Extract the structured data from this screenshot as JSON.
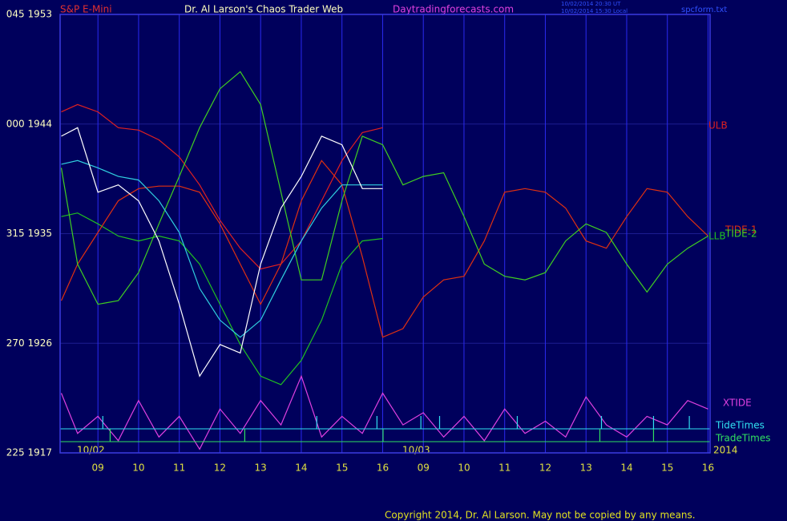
{
  "chart_data": {
    "type": "line",
    "instrument": "S&P E-Mini",
    "title": "Dr. Al Larson's Chaos Trader Web",
    "website": "Daytradingforecasts.com",
    "timestamps": [
      "10/02/2014 20:30 UT",
      "10/02/2014 15:30 Local"
    ],
    "file": "spcform.txt",
    "copyright": "Copyright 2014, Dr. Al Larson. May not be copied by any means.",
    "date_labels": [
      "10/02",
      "10/03",
      "2014"
    ],
    "grid": true,
    "xlim": [
      0.07,
      16.05
    ],
    "ylim": [
      1917,
      1953
    ],
    "xticks": [
      {
        "value": 1,
        "label": "09"
      },
      {
        "value": 2,
        "label": "10"
      },
      {
        "value": 3,
        "label": "11"
      },
      {
        "value": 4,
        "label": "12"
      },
      {
        "value": 5,
        "label": "13"
      },
      {
        "value": 6,
        "label": "14"
      },
      {
        "value": 7,
        "label": "15"
      },
      {
        "value": 8,
        "label": "16"
      },
      {
        "value": 9,
        "label": "09"
      },
      {
        "value": 10,
        "label": "10"
      },
      {
        "value": 11,
        "label": "11"
      },
      {
        "value": 12,
        "label": "12"
      },
      {
        "value": 13,
        "label": "13"
      },
      {
        "value": 14,
        "label": "14"
      },
      {
        "value": 15,
        "label": "15"
      },
      {
        "value": 16,
        "label": "16"
      }
    ],
    "yticks": [
      {
        "value": 1953,
        "label": "045 1953"
      },
      {
        "value": 1944,
        "label": "000 1944"
      },
      {
        "value": 1935,
        "label": "315 1935"
      },
      {
        "value": 1926,
        "label": "270 1926"
      },
      {
        "value": 1917,
        "label": "225 1917"
      }
    ],
    "x": [
      0.1,
      0.5,
      1,
      1.5,
      2,
      2.5,
      3,
      3.5,
      4,
      4.5,
      5,
      5.5,
      6,
      6.5,
      7,
      7.5,
      8,
      8.5,
      9,
      9.5,
      10,
      10.5,
      11,
      11.5,
      12,
      12.5,
      13,
      13.5,
      14,
      14.5,
      15,
      15.5,
      16
    ],
    "series": [
      {
        "name": "ULB",
        "color": "#e02020",
        "values": [
          1945.0,
          1945.6,
          1945.0,
          1943.7,
          1943.5,
          1942.7,
          1941.3,
          1939.0,
          1936.1,
          1933.8,
          1932.1,
          1932.5,
          1934.4,
          1937.7,
          1941.0,
          1943.3,
          1943.7,
          null,
          null,
          null,
          null,
          null,
          null,
          null,
          null,
          null,
          null,
          null,
          null,
          null,
          null,
          null,
          null
        ]
      },
      {
        "name": "LLB",
        "color": "#20c020",
        "values": [
          1936.4,
          1936.7,
          1935.8,
          1934.8,
          1934.4,
          1934.8,
          1934.4,
          1932.5,
          1929.2,
          1925.9,
          1923.3,
          1922.6,
          1924.6,
          1927.9,
          1932.5,
          1934.4,
          1934.6,
          null,
          null,
          null,
          null,
          null,
          null,
          null,
          null,
          null,
          null,
          null,
          null,
          null,
          null,
          null,
          null
        ]
      },
      {
        "name": "TIDE-1",
        "color": "#e03010",
        "values": [
          1929.5,
          1932.5,
          1935.1,
          1937.7,
          1938.7,
          1938.9,
          1938.9,
          1938.4,
          1935.8,
          1932.5,
          1929.2,
          1932.5,
          1937.7,
          1941.0,
          1939.0,
          1933.1,
          1926.5,
          1927.2,
          1929.8,
          1931.2,
          1931.5,
          1934.4,
          1938.4,
          1938.7,
          1938.4,
          1937.1,
          1934.4,
          1933.8,
          1936.4,
          1938.7,
          1938.4,
          1936.4,
          1934.8
        ]
      },
      {
        "name": "TIDE-2",
        "color": "#40d020",
        "values": [
          1940.4,
          1932.5,
          1929.2,
          1929.5,
          1931.8,
          1935.8,
          1939.7,
          1943.7,
          1946.9,
          1948.3,
          1945.6,
          1938.4,
          1931.2,
          1931.2,
          1937.7,
          1943.0,
          1942.3,
          1939.0,
          1939.7,
          1940.0,
          1936.4,
          1932.5,
          1931.5,
          1931.2,
          1931.8,
          1934.4,
          1935.8,
          1935.1,
          1932.5,
          1930.2,
          1932.5,
          1933.8,
          1934.8
        ]
      },
      {
        "name": "XTIDE",
        "color": "#e040e0",
        "values": [
          1921.9,
          1918.6,
          1920.0,
          1918.0,
          1921.3,
          1918.3,
          1920.0,
          1917.3,
          1920.6,
          1918.6,
          1921.3,
          1919.3,
          1923.3,
          1918.3,
          1920.0,
          1918.6,
          1921.9,
          1919.3,
          1920.3,
          1918.3,
          1920.0,
          1918.0,
          1920.6,
          1918.6,
          1919.6,
          1918.3,
          1921.6,
          1919.3,
          1918.3,
          1920.0,
          1919.3,
          1921.3,
          1920.6
        ]
      },
      {
        "color": "#30d0e0",
        "values": [
          1940.7,
          1941.0,
          1940.4,
          1939.7,
          1939.4,
          1937.7,
          1935.1,
          1930.5,
          1927.9,
          1926.5,
          1927.9,
          1931.2,
          1934.4,
          1937.1,
          1939.0,
          1939.0,
          1939.0,
          null,
          null,
          null,
          null,
          null,
          null,
          null,
          null,
          null,
          null,
          null,
          null,
          null,
          null,
          null,
          null
        ]
      },
      {
        "color": "#ffffff",
        "values": [
          1943.0,
          1943.7,
          1938.4,
          1939.0,
          1937.7,
          1934.4,
          1929.2,
          1923.3,
          1925.9,
          1925.2,
          1932.5,
          1937.1,
          1939.7,
          1943.0,
          1942.3,
          1938.7,
          1938.7,
          null,
          null,
          null,
          null,
          null,
          null,
          null,
          null,
          null,
          null,
          null,
          null,
          null,
          null,
          null,
          null
        ]
      }
    ],
    "event_series": [
      {
        "name": "TideTimes",
        "color": "#30e0f0",
        "x": [
          1.12,
          6.38,
          7.86,
          8.94,
          9.4,
          11.31,
          13.38,
          14.66,
          15.54
        ]
      },
      {
        "name": "TradeTimes",
        "color": "#30e060",
        "x": [
          1.3,
          4.61,
          8.01,
          13.34,
          14.66
        ]
      }
    ]
  }
}
